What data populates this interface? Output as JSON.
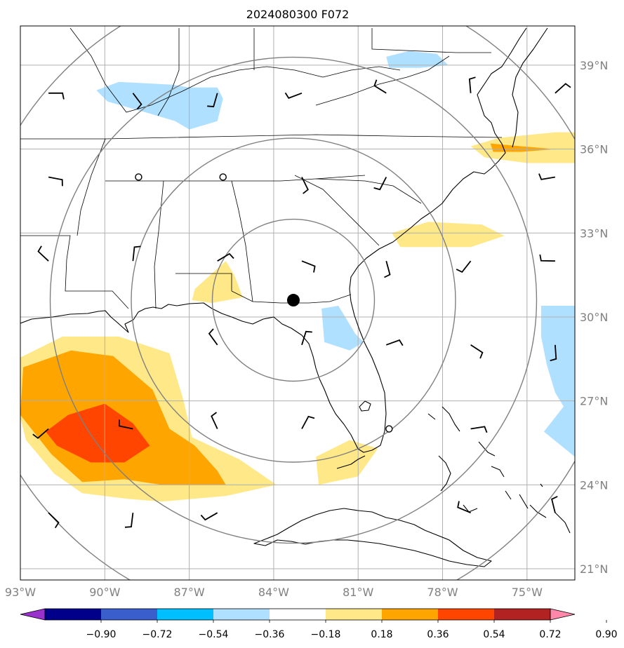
{
  "chart_data": {
    "type": "heatmap",
    "title": "2024080300 F072",
    "projection": "map, lon/lat grid",
    "x_range_lon": [
      -93.0,
      -73.3
    ],
    "y_range_lat": [
      20.6,
      40.4
    ],
    "xticks": [
      {
        "lon": -93,
        "label": "93°W"
      },
      {
        "lon": -90,
        "label": "90°W"
      },
      {
        "lon": -87,
        "label": "87°W"
      },
      {
        "lon": -84,
        "label": "84°W"
      },
      {
        "lon": -81,
        "label": "81°W"
      },
      {
        "lon": -78,
        "label": "78°W"
      },
      {
        "lon": -75,
        "label": "75°W"
      }
    ],
    "yticks": [
      {
        "lat": 21,
        "label": "21°N"
      },
      {
        "lat": 24,
        "label": "24°N"
      },
      {
        "lat": 27,
        "label": "27°N"
      },
      {
        "lat": 30,
        "label": "30°N"
      },
      {
        "lat": 33,
        "label": "33°N"
      },
      {
        "lat": 36,
        "label": "36°N"
      },
      {
        "lat": 39,
        "label": "39°N"
      }
    ],
    "grid": true,
    "center_point": {
      "lon": -83.3,
      "lat": 30.6
    },
    "range_rings_deg": [
      3,
      6,
      9,
      12
    ],
    "colorbar": {
      "orientation": "horizontal",
      "position": "bottom",
      "extend": "both",
      "levels": [
        -0.9,
        -0.72,
        -0.54,
        -0.36,
        -0.18,
        0.18,
        0.36,
        0.54,
        0.72,
        0.9
      ],
      "tick_labels": [
        "−0.90",
        "−0.72",
        "−0.54",
        "−0.36",
        "−0.18",
        "0.18",
        "0.36",
        "0.54",
        "0.72",
        "0.90"
      ],
      "colors": [
        "#9932cc",
        "#00008b",
        "#3a5fcd",
        "#00bfff",
        "#b0e0ff",
        "#ffffff",
        "#ffe888",
        "#ffa500",
        "#ff4500",
        "#b22222",
        "#ff88aa"
      ]
    },
    "shaded_regions": [
      {
        "value_class": "0.18..0.36",
        "color": "#ffe888",
        "pts": [
          [
            -93.1,
            28.5
          ],
          [
            -91.5,
            29.3
          ],
          [
            -89.5,
            29.3
          ],
          [
            -87.7,
            28.7
          ],
          [
            -87.2,
            27.0
          ],
          [
            -86.9,
            25.7
          ],
          [
            -85.2,
            24.9
          ],
          [
            -83.9,
            24.0
          ],
          [
            -85.7,
            23.6
          ],
          [
            -88.0,
            23.4
          ],
          [
            -89.2,
            23.5
          ],
          [
            -90.8,
            23.7
          ],
          [
            -91.8,
            24.4
          ],
          [
            -92.8,
            25.6
          ],
          [
            -93.1,
            26.8
          ]
        ]
      },
      {
        "value_class": "0.36..0.54",
        "color": "#ffa500",
        "pts": [
          [
            -92.9,
            28.2
          ],
          [
            -91.2,
            28.8
          ],
          [
            -89.7,
            28.6
          ],
          [
            -88.3,
            27.4
          ],
          [
            -87.7,
            26.0
          ],
          [
            -86.8,
            25.4
          ],
          [
            -86.0,
            24.5
          ],
          [
            -85.7,
            24.0
          ],
          [
            -88.0,
            24.0
          ],
          [
            -89.3,
            24.2
          ],
          [
            -90.8,
            24.1
          ],
          [
            -91.9,
            25.1
          ],
          [
            -93.0,
            26.5
          ]
        ]
      },
      {
        "value_class": "0.54..0.72",
        "color": "#ff4500",
        "pts": [
          [
            -91.3,
            26.5
          ],
          [
            -90.0,
            26.9
          ],
          [
            -89.0,
            26.2
          ],
          [
            -88.4,
            25.4
          ],
          [
            -89.3,
            24.8
          ],
          [
            -90.5,
            24.8
          ],
          [
            -91.7,
            25.4
          ],
          [
            -92.1,
            25.9
          ]
        ]
      },
      {
        "value_class": "0.18..0.36",
        "color": "#ffe888",
        "pts": [
          [
            -86.8,
            31.0
          ],
          [
            -85.7,
            32.0
          ],
          [
            -85.4,
            31.5
          ],
          [
            -85.1,
            30.7
          ],
          [
            -86.2,
            30.5
          ],
          [
            -86.9,
            30.6
          ]
        ]
      },
      {
        "value_class": "0.18..0.36",
        "color": "#ffe888",
        "pts": [
          [
            -82.5,
            25.0
          ],
          [
            -81.3,
            25.6
          ],
          [
            -80.3,
            25.3
          ],
          [
            -81.0,
            24.3
          ],
          [
            -82.4,
            24.0
          ]
        ]
      },
      {
        "value_class": "0.18..0.36",
        "color": "#ffe888",
        "pts": [
          [
            -79.8,
            33.0
          ],
          [
            -78.5,
            33.4
          ],
          [
            -76.6,
            33.3
          ],
          [
            -75.8,
            32.9
          ],
          [
            -77.0,
            32.5
          ],
          [
            -78.0,
            32.5
          ],
          [
            -79.5,
            32.5
          ]
        ]
      },
      {
        "value_class": "0.18..0.36",
        "color": "#ffe888",
        "pts": [
          [
            -77.0,
            36.1
          ],
          [
            -76.0,
            36.4
          ],
          [
            -74.0,
            36.6
          ],
          [
            -73.3,
            36.6
          ],
          [
            -73.3,
            35.5
          ],
          [
            -75.0,
            35.5
          ],
          [
            -76.5,
            35.7
          ]
        ]
      },
      {
        "value_class": "0.36..0.54",
        "color": "#ffa500",
        "pts": [
          [
            -76.3,
            36.2
          ],
          [
            -75.2,
            36.1
          ],
          [
            -74.0,
            36.0
          ],
          [
            -75.2,
            35.9
          ],
          [
            -76.2,
            35.9
          ]
        ]
      },
      {
        "value_class": "-0.36..-0.18",
        "color": "#b0e0ff",
        "pts": [
          [
            -90.3,
            38.1
          ],
          [
            -89.5,
            38.4
          ],
          [
            -87.6,
            38.3
          ],
          [
            -87.0,
            38.2
          ],
          [
            -86.0,
            38.2
          ],
          [
            -85.8,
            37.8
          ],
          [
            -86.0,
            37.0
          ],
          [
            -87.0,
            36.7
          ],
          [
            -87.5,
            37.0
          ],
          [
            -88.5,
            37.3
          ],
          [
            -89.9,
            37.7
          ]
        ]
      },
      {
        "value_class": "-0.36..-0.18",
        "color": "#b0e0ff",
        "pts": [
          [
            -80.0,
            39.3
          ],
          [
            -79.2,
            39.5
          ],
          [
            -78.2,
            39.4
          ],
          [
            -77.8,
            39.0
          ],
          [
            -78.8,
            38.9
          ],
          [
            -79.9,
            38.9
          ]
        ]
      },
      {
        "value_class": "-0.36..-0.18",
        "color": "#b0e0ff",
        "pts": [
          [
            -82.3,
            30.3
          ],
          [
            -81.7,
            30.4
          ],
          [
            -81.1,
            29.4
          ],
          [
            -80.8,
            29.1
          ],
          [
            -81.3,
            28.8
          ],
          [
            -82.2,
            29.1
          ]
        ]
      },
      {
        "value_class": "-0.36..-0.18",
        "color": "#b0e0ff",
        "pts": [
          [
            -74.5,
            30.4
          ],
          [
            -73.3,
            30.4
          ],
          [
            -73.3,
            25.0
          ],
          [
            -74.4,
            25.9
          ],
          [
            -73.7,
            26.8
          ],
          [
            -74.0,
            27.3
          ],
          [
            -74.3,
            28.3
          ],
          [
            -74.5,
            29.3
          ]
        ]
      }
    ],
    "station_markers": [
      {
        "lon": -88.8,
        "lat": 35.0
      },
      {
        "lon": -85.8,
        "lat": 35.0
      },
      {
        "lon": -79.9,
        "lat": 26.0
      }
    ],
    "wind_barbs": [
      [
        -92.0,
        38.0
      ],
      [
        -89.0,
        38.0
      ],
      [
        -86.0,
        38.0
      ],
      [
        -83.0,
        38.0
      ],
      [
        -80.0,
        38.0
      ],
      [
        -77.0,
        38.0
      ],
      [
        -74.0,
        38.0
      ],
      [
        -92.0,
        35.0
      ],
      [
        -83.0,
        35.0
      ],
      [
        -80.0,
        35.0
      ],
      [
        -74.0,
        35.0
      ],
      [
        -92.0,
        32.0
      ],
      [
        -89.0,
        32.0
      ],
      [
        -86.0,
        32.0
      ],
      [
        -83.0,
        32.0
      ],
      [
        -80.0,
        32.0
      ],
      [
        -77.0,
        32.0
      ],
      [
        -74.0,
        32.0
      ],
      [
        -86.0,
        29.0
      ],
      [
        -83.0,
        29.0
      ],
      [
        -80.0,
        29.0
      ],
      [
        -77.0,
        29.0
      ],
      [
        -74.0,
        29.0
      ],
      [
        -92.0,
        26.0
      ],
      [
        -89.0,
        26.0
      ],
      [
        -86.0,
        26.0
      ],
      [
        -83.0,
        26.0
      ],
      [
        -77.0,
        26.0
      ],
      [
        -92.0,
        23.0
      ],
      [
        -89.0,
        23.0
      ],
      [
        -86.0,
        23.0
      ],
      [
        -77.0,
        23.0
      ],
      [
        -74.0,
        23.0
      ]
    ]
  }
}
